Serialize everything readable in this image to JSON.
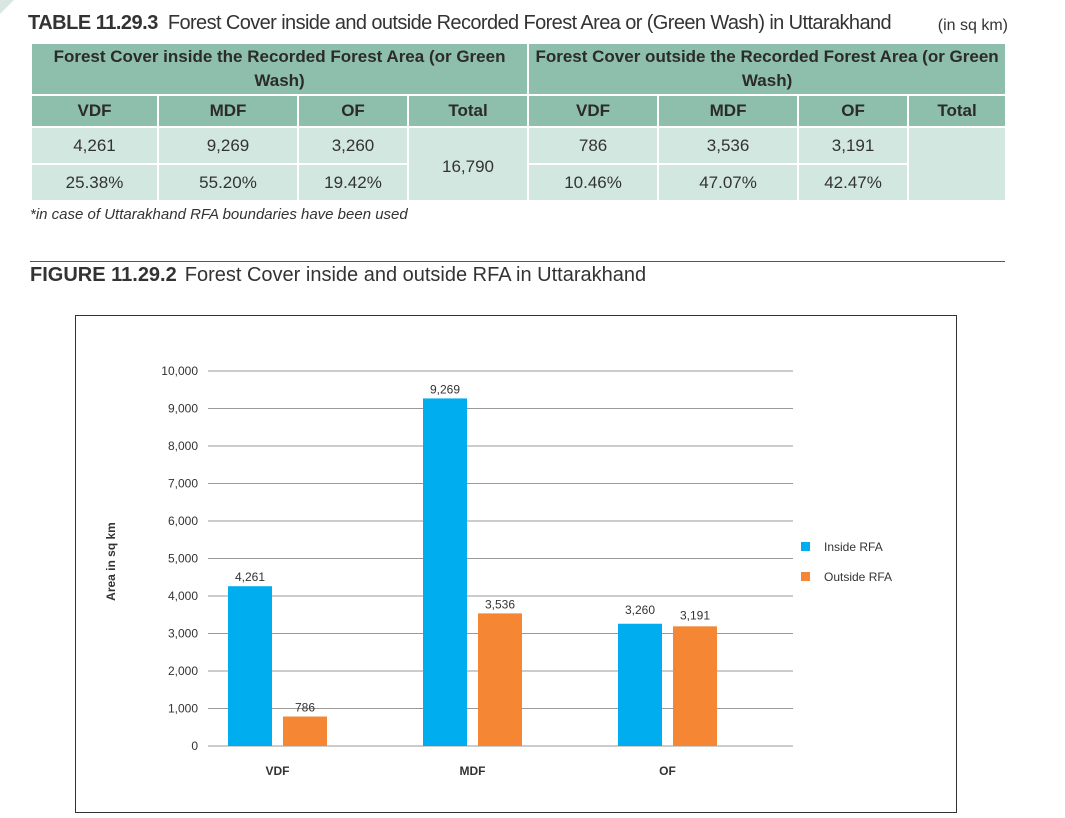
{
  "table": {
    "number": "TABLE 11.29.3",
    "title": "Forest Cover inside and outside Recorded Forest Area or (Green Wash) in Uttarakhand",
    "unit": "(in sq km)",
    "group_inside": "Forest Cover inside the Recorded Forest Area (or Green Wash)",
    "group_outside": "Forest Cover outside the Recorded Forest Area (or Green Wash)",
    "headers": [
      "VDF",
      "MDF",
      "OF",
      "Total",
      "VDF",
      "MDF",
      "OF",
      "Total"
    ],
    "row_area": [
      "4,261",
      "9,269",
      "3,260",
      "16,790",
      "786",
      "3,536",
      "3,191",
      ""
    ],
    "row_percent": [
      "25.38%",
      "55.20%",
      "19.42%",
      "",
      "10.46%",
      "47.07%",
      "42.47%",
      ""
    ],
    "footnote": "*in case of Uttarakhand RFA boundaries have been used"
  },
  "figure": {
    "number": "FIGURE 11.29.2",
    "title": "Forest Cover inside and outside RFA in Uttarakhand"
  },
  "chart_data": {
    "type": "bar",
    "categories": [
      "VDF",
      "MDF",
      "OF"
    ],
    "series": [
      {
        "name": "Inside RFA",
        "values": [
          4261,
          9269,
          3260
        ],
        "labels": [
          "4,261",
          "9,269",
          "3,260"
        ],
        "color": "#00aeef"
      },
      {
        "name": "Outside RFA",
        "values": [
          786,
          3536,
          3191
        ],
        "labels": [
          "786",
          "3,536",
          "3,191"
        ],
        "color": "#f58634"
      }
    ],
    "ylabel": "Area in sq km",
    "xlabel": "",
    "ylim": [
      0,
      10000
    ],
    "yticks": [
      "0",
      "1,000",
      "2,000",
      "3,000",
      "4,000",
      "5,000",
      "6,000",
      "7,000",
      "8,000",
      "9,000",
      "10,000"
    ],
    "grid": true,
    "legend_position": "right"
  }
}
